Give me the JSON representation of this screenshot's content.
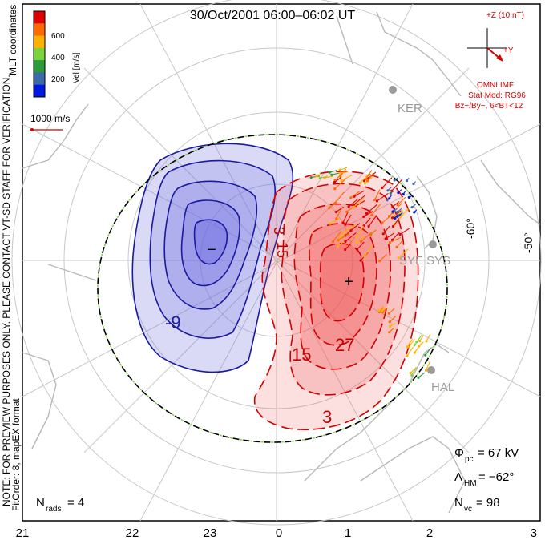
{
  "title": "30/Oct/2001 06:00–06:02 UT",
  "coordinates_label": "MLT coordinates",
  "velocity_bar": {
    "unit_label": "Vel [m/s]",
    "ticks": [
      "600",
      "400",
      "200"
    ],
    "colors": [
      "#e00000",
      "#ff6a00",
      "#ffb000",
      "#7ad33a",
      "#2a9a3a",
      "#3a6aa8",
      "#0018e0"
    ]
  },
  "reference_vector": "1000 m/s",
  "note_line1": "NOTE: FOR PREVIEW PURPOSES ONLY. PLEASE CONTACT VT-SD STAFF FOR VERIFICATION.",
  "note_line2": "FitOrder: 8, mapEX format",
  "imf": {
    "z_label": "+Z (10 nT)",
    "y_label": "+Y",
    "source": "OMNI IMF",
    "model": "Stat Mod: RG96",
    "condition": "Bz−/By−, 6<BT<12"
  },
  "stations": [
    "KER",
    "SYE SYS",
    "HAL"
  ],
  "latitude_labels": [
    "-60°",
    "-50°"
  ],
  "mlt_ticks": [
    "21",
    "22",
    "23",
    "0",
    "1",
    "2",
    "3"
  ],
  "contour_labels": {
    "positive": [
      "3",
      "15",
      "27",
      "15",
      "3"
    ],
    "negative": [
      "-9"
    ]
  },
  "extrema": {
    "max_marker": "+",
    "min_marker": "−"
  },
  "stats": {
    "phi_symbol": "Φ",
    "phi_sub": "pc",
    "phi_value": "= 67 kV",
    "lambda_symbol": "Λ",
    "lambda_sub": "HM",
    "lambda_value": "= −62°",
    "nvc_symbol": "N",
    "nvc_sub": "vc",
    "nvc_value": "= 98",
    "nrads_symbol": "N",
    "nrads_sub": "rads",
    "nrads_value": "= 4"
  },
  "colors": {
    "positive_contour": "#d40000",
    "negative_contour": "#1a1aa0",
    "positive_fill": "#f05050",
    "negative_fill": "#6a6ae0",
    "boundary": "#000000",
    "grid": "#c8c8c8",
    "coast": "#b8b8b8"
  }
}
